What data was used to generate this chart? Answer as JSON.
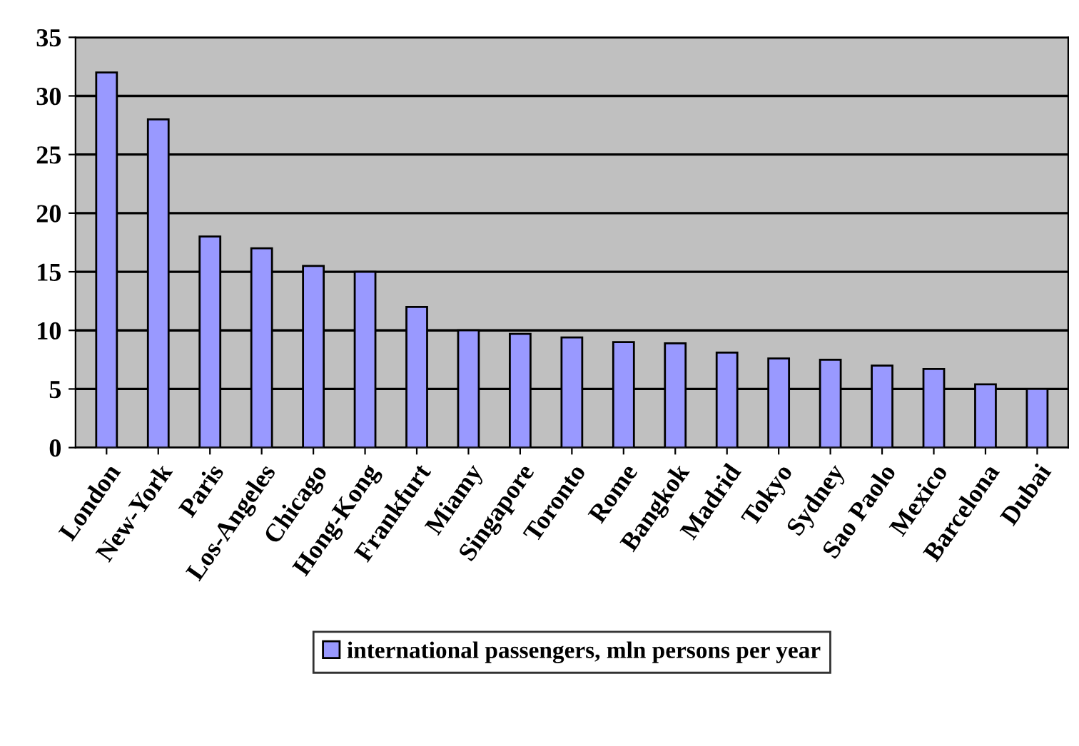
{
  "chart_data": {
    "type": "bar",
    "categories": [
      "London",
      "New-York",
      "Paris",
      "Los-Angeles",
      "Chicago",
      "Hong-Kong",
      "Frankfurt",
      "Miamy",
      "Singapore",
      "Toronto",
      "Rome",
      "Bangkok",
      "Madrid",
      "Tokyo",
      "Sydney",
      "Sao Paolo",
      "Mexico",
      "Barcelona",
      "Dubai"
    ],
    "series": [
      {
        "name": "international passengers, mln persons per year",
        "color": "#9999ff",
        "values": [
          32,
          28,
          18,
          17,
          15.5,
          15,
          12,
          10,
          9.7,
          9.4,
          9.0,
          8.9,
          8.1,
          7.6,
          7.5,
          7.0,
          6.7,
          5.4,
          5.0
        ]
      }
    ],
    "ylim": [
      0,
      35
    ],
    "yticks": [
      0,
      5,
      10,
      15,
      20,
      25,
      30,
      35
    ],
    "grid": "y",
    "legend": "bottom"
  }
}
